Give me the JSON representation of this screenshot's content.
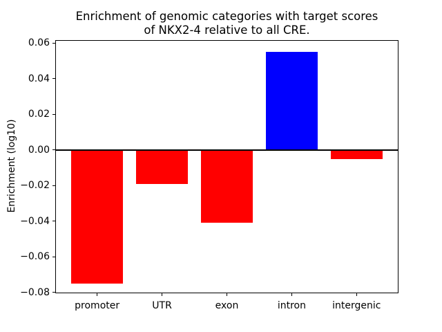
{
  "figure": {
    "background": "#ffffff",
    "title_line1": "Enrichment of genomic categories with target scores",
    "title_line2": "of NKX2-4 relative to all CRE.",
    "ylabel": "Enrichment (log10)"
  },
  "chart_data": {
    "type": "bar",
    "title": "Enrichment of genomic categories with target scores of NKX2-4 relative to all CRE.",
    "xlabel": "",
    "ylabel": "Enrichment (log10)",
    "categories": [
      "promoter",
      "UTR",
      "exon",
      "intron",
      "intergenic"
    ],
    "values": [
      -0.075,
      -0.019,
      -0.041,
      0.055,
      -0.005
    ],
    "bar_colors": [
      "#ff0000",
      "#ff0000",
      "#ff0000",
      "#0000ff",
      "#ff0000"
    ],
    "negative_color": "#ff0000",
    "positive_color": "#0000ff",
    "axis_color": "#000000",
    "ylim": [
      -0.0805,
      0.0616
    ],
    "xlim": [
      -0.6457,
      4.6457
    ],
    "bar_width": 0.8,
    "yticks": [
      0.06,
      0.04,
      0.02,
      0.0,
      -0.02,
      -0.04,
      -0.06,
      -0.08
    ],
    "ytick_labels": [
      "0.06",
      "0.04",
      "0.02",
      "0.00",
      "−0.02",
      "−0.04",
      "−0.06",
      "−0.08"
    ],
    "grid": false,
    "legend": null,
    "zero_line": true
  }
}
